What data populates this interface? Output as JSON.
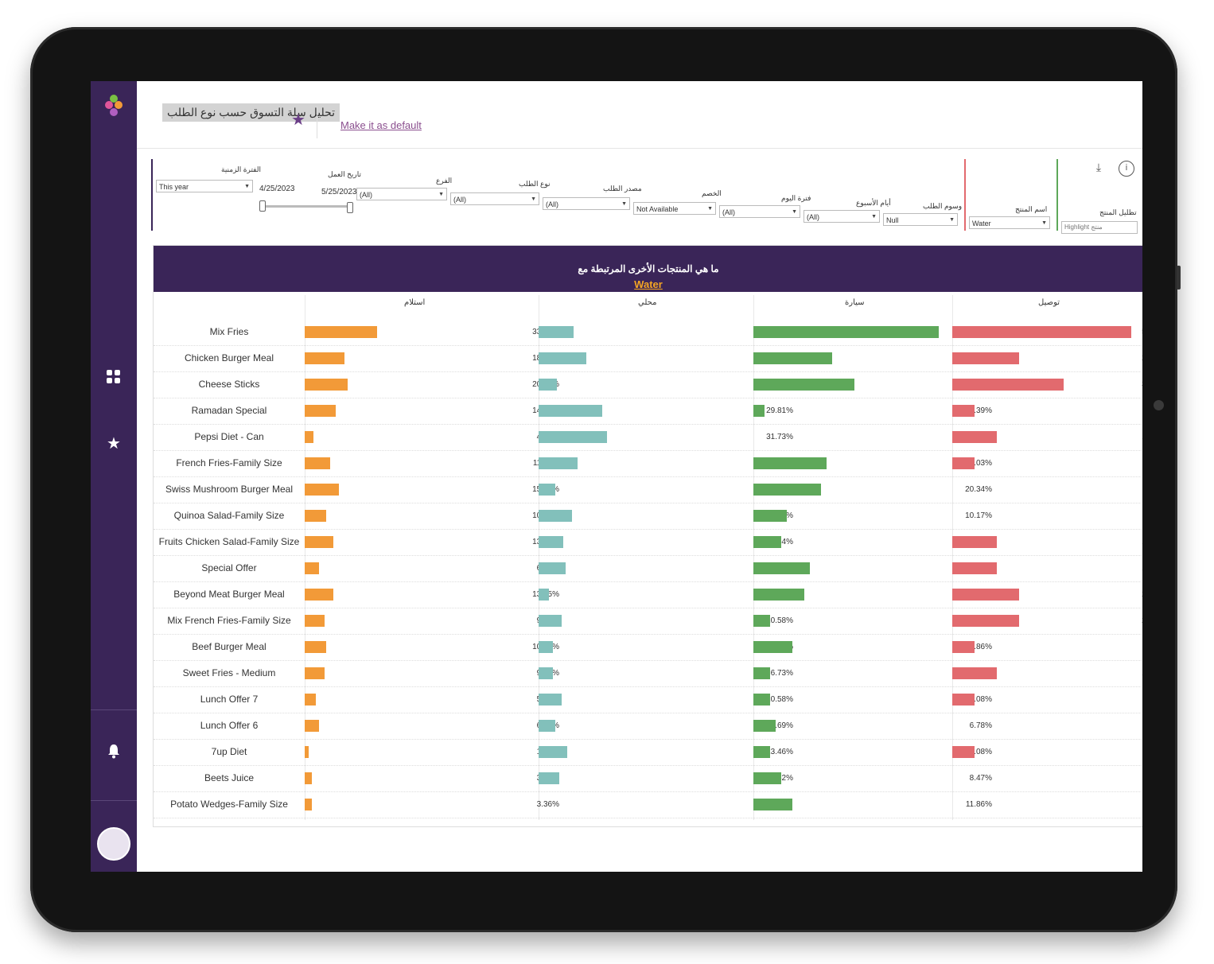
{
  "header": {
    "title": "تحليل سلة التسوق حسب نوع الطلب",
    "make_default": "Make it as default"
  },
  "filters": {
    "period": {
      "label": "الفترة الزمنية",
      "value": "This year"
    },
    "work_date": {
      "label": "تاريخ العمل",
      "from": "4/25/2023",
      "to": "5/25/2023",
      "start_fraction": 0,
      "end_fraction": 1
    },
    "branch": {
      "label": "الفرع",
      "value": "(All)"
    },
    "order_type": {
      "label": "نوع الطلب",
      "value": "(All)"
    },
    "order_source": {
      "label": "مصدر الطلب",
      "value": "(All)"
    },
    "discount": {
      "label": "الخصم",
      "value": "Not Available"
    },
    "day_period": {
      "label": "فترة اليوم",
      "value": "(All)"
    },
    "weekdays": {
      "label": "أيام الأسبوع",
      "value": "(All)"
    },
    "order_tags": {
      "label": "وسوم الطلب",
      "value": "Null"
    },
    "product_name": {
      "label": "اسم المنتج",
      "value": "Water"
    },
    "product_highlight": {
      "label": "تظليل المنتج",
      "placeholder": "Highlight منتج"
    }
  },
  "banner": {
    "question": "ما هي المنتجات الأخرى المرتبطة مع",
    "product": "Water"
  },
  "colors": {
    "sidebar": "#3a2558",
    "pickup": "#f29a38",
    "local": "#82c0bb",
    "car": "#5ea85a",
    "delivery": "#e26a6e"
  },
  "chart_data": {
    "type": "bar",
    "title": "ما هي المنتجات الأخرى المرتبطة مع Water",
    "categories": [
      "Mix Fries",
      "Chicken Burger Meal",
      "Cheese Sticks",
      "Ramadan Special",
      "Pepsi Diet - Can",
      "French Fries-Family Size",
      "Swiss Mushroom Burger Meal",
      "Quinoa Salad-Family Size",
      "Fruits Chicken Salad-Family Size",
      "Special Offer",
      "Beyond Meat Burger Meal",
      "Mix French Fries-Family Size",
      "Beef Burger Meal",
      "Sweet Fries - Medium",
      "Lunch Offer 7",
      "Lunch Offer 6",
      "7up Diet",
      "Beets Juice",
      "Potato Wedges-Family Size"
    ],
    "series": [
      {
        "name": "استلام",
        "values": [
          33.61,
          18.49,
          20.17,
          14.29,
          4.2,
          11.76,
          15.97,
          10.08,
          13.45,
          6.72,
          13.45,
          9.24,
          10.08,
          9.24,
          5.04,
          6.72,
          1.68,
          3.36,
          3.36
        ]
      },
      {
        "name": "محلي",
        "values": [
          16.35,
          22.12,
          8.65,
          29.81,
          31.73,
          18.27,
          7.69,
          15.38,
          11.54,
          12.5,
          4.81,
          10.58,
          6.73,
          6.73,
          10.58,
          7.69,
          13.46,
          9.62,
          null
        ]
      },
      {
        "name": "سيارة",
        "values": [
          55.93,
          23.73,
          30.51,
          3.39,
          null,
          22.03,
          20.34,
          10.17,
          8.47,
          16.95,
          15.25,
          5.08,
          11.86,
          5.08,
          5.08,
          6.78,
          5.08,
          8.47,
          11.86
        ]
      },
      {
        "name": "توصيل",
        "values": [
          57.14,
          21.43,
          35.71,
          7.14,
          14.29,
          7.14,
          null,
          null,
          14.29,
          14.29,
          21.43,
          21.43,
          7.14,
          14.29,
          7.14,
          null,
          7.14,
          null,
          null
        ]
      }
    ]
  }
}
